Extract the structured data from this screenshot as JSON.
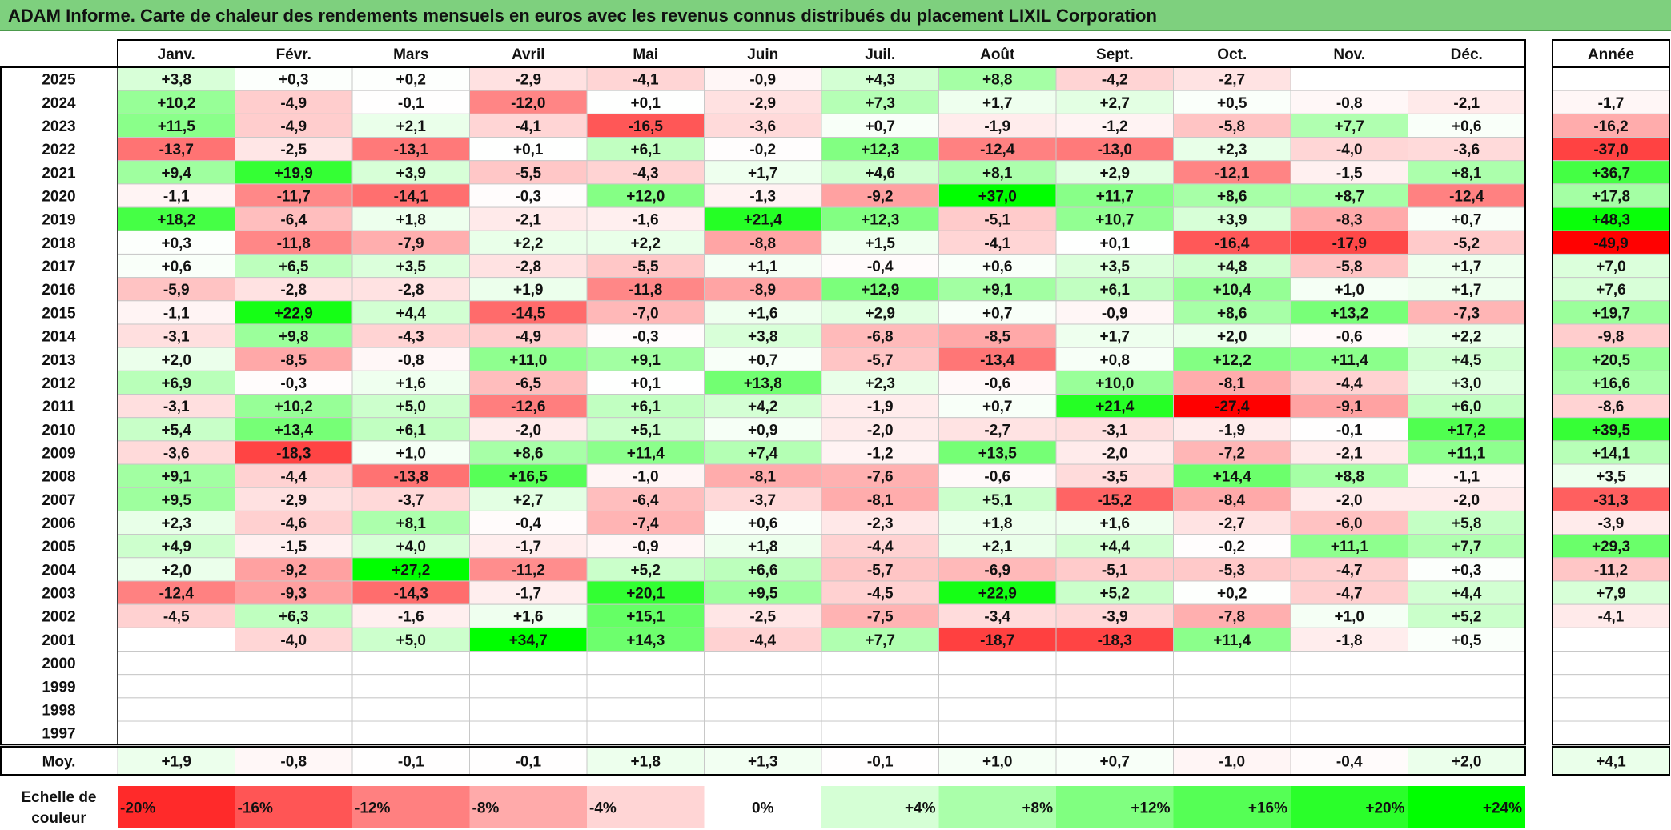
{
  "title": "ADAM Informe. Carte de chaleur des rendements mensuels en euros avec les revenus connus distribués du placement LIXIL Corporation",
  "chart_data": {
    "type": "heatmap",
    "months": [
      "Janv.",
      "Févr.",
      "Mars",
      "Avril",
      "Mai",
      "Juin",
      "Juil.",
      "Août",
      "Sept.",
      "Oct.",
      "Nov.",
      "Déc."
    ],
    "annual_header": "Année",
    "rows": [
      {
        "year": "2025",
        "values": [
          "+3,8",
          "+0,3",
          "+0,2",
          "-2,9",
          "-4,1",
          "-0,9",
          "+4,3",
          "+8,8",
          "-4,2",
          "-2,7",
          "",
          ""
        ],
        "annual": ""
      },
      {
        "year": "2024",
        "values": [
          "+10,2",
          "-4,9",
          "-0,1",
          "-12,0",
          "+0,1",
          "-2,9",
          "+7,3",
          "+1,7",
          "+2,7",
          "+0,5",
          "-0,8",
          "-2,1"
        ],
        "annual": "-1,7"
      },
      {
        "year": "2023",
        "values": [
          "+11,5",
          "-4,9",
          "+2,1",
          "-4,1",
          "-16,5",
          "-3,6",
          "+0,7",
          "-1,9",
          "-1,2",
          "-5,8",
          "+7,7",
          "+0,6"
        ],
        "annual": "-16,2"
      },
      {
        "year": "2022",
        "values": [
          "-13,7",
          "-2,5",
          "-13,1",
          "+0,1",
          "+6,1",
          "-0,2",
          "+12,3",
          "-12,4",
          "-13,0",
          "+2,3",
          "-4,0",
          "-3,6"
        ],
        "annual": "-37,0"
      },
      {
        "year": "2021",
        "values": [
          "+9,4",
          "+19,9",
          "+3,9",
          "-5,5",
          "-4,3",
          "+1,7",
          "+4,6",
          "+8,1",
          "+2,9",
          "-12,1",
          "-1,5",
          "+8,1"
        ],
        "annual": "+36,7"
      },
      {
        "year": "2020",
        "values": [
          "-1,1",
          "-11,7",
          "-14,1",
          "-0,3",
          "+12,0",
          "-1,3",
          "-9,2",
          "+37,0",
          "+11,7",
          "+8,6",
          "+8,7",
          "-12,4"
        ],
        "annual": "+17,8"
      },
      {
        "year": "2019",
        "values": [
          "+18,2",
          "-6,4",
          "+1,8",
          "-2,1",
          "-1,6",
          "+21,4",
          "+12,3",
          "-5,1",
          "+10,7",
          "+3,9",
          "-8,3",
          "+0,7"
        ],
        "annual": "+48,3"
      },
      {
        "year": "2018",
        "values": [
          "+0,3",
          "-11,8",
          "-7,9",
          "+2,2",
          "+2,2",
          "-8,8",
          "+1,5",
          "-4,1",
          "+0,1",
          "-16,4",
          "-17,9",
          "-5,2"
        ],
        "annual": "-49,9"
      },
      {
        "year": "2017",
        "values": [
          "+0,6",
          "+6,5",
          "+3,5",
          "-2,8",
          "-5,5",
          "+1,1",
          "-0,4",
          "+0,6",
          "+3,5",
          "+4,8",
          "-5,8",
          "+1,7"
        ],
        "annual": "+7,0"
      },
      {
        "year": "2016",
        "values": [
          "-5,9",
          "-2,8",
          "-2,8",
          "+1,9",
          "-11,8",
          "-8,9",
          "+12,9",
          "+9,1",
          "+6,1",
          "+10,4",
          "+1,0",
          "+1,7"
        ],
        "annual": "+7,6"
      },
      {
        "year": "2015",
        "values": [
          "-1,1",
          "+22,9",
          "+4,4",
          "-14,5",
          "-7,0",
          "+1,6",
          "+2,9",
          "+0,7",
          "-0,9",
          "+8,6",
          "+13,2",
          "-7,3"
        ],
        "annual": "+19,7"
      },
      {
        "year": "2014",
        "values": [
          "-3,1",
          "+9,8",
          "-4,3",
          "-4,9",
          "-0,3",
          "+3,8",
          "-6,8",
          "-8,5",
          "+1,7",
          "+2,0",
          "-0,6",
          "+2,2"
        ],
        "annual": "-9,8"
      },
      {
        "year": "2013",
        "values": [
          "+2,0",
          "-8,5",
          "-0,8",
          "+11,0",
          "+9,1",
          "+0,7",
          "-5,7",
          "-13,4",
          "+0,8",
          "+12,2",
          "+11,4",
          "+4,5"
        ],
        "annual": "+20,5"
      },
      {
        "year": "2012",
        "values": [
          "+6,9",
          "-0,3",
          "+1,6",
          "-6,5",
          "+0,1",
          "+13,8",
          "+2,3",
          "-0,6",
          "+10,0",
          "-8,1",
          "-4,4",
          "+3,0"
        ],
        "annual": "+16,6"
      },
      {
        "year": "2011",
        "values": [
          "-3,1",
          "+10,2",
          "+5,0",
          "-12,6",
          "+6,1",
          "+4,2",
          "-1,9",
          "+0,7",
          "+21,4",
          "-27,4",
          "-9,1",
          "+6,0"
        ],
        "annual": "-8,6"
      },
      {
        "year": "2010",
        "values": [
          "+5,4",
          "+13,4",
          "+6,1",
          "-2,0",
          "+5,1",
          "+0,9",
          "-2,0",
          "-2,7",
          "-3,1",
          "-1,9",
          "-0,1",
          "+17,2"
        ],
        "annual": "+39,5"
      },
      {
        "year": "2009",
        "values": [
          "-3,6",
          "-18,3",
          "+1,0",
          "+8,6",
          "+11,4",
          "+7,4",
          "-1,2",
          "+13,5",
          "-2,0",
          "-7,2",
          "-2,1",
          "+11,1"
        ],
        "annual": "+14,1"
      },
      {
        "year": "2008",
        "values": [
          "+9,1",
          "-4,4",
          "-13,8",
          "+16,5",
          "-1,0",
          "-8,1",
          "-7,6",
          "-0,6",
          "-3,5",
          "+14,4",
          "+8,8",
          "-1,1"
        ],
        "annual": "+3,5"
      },
      {
        "year": "2007",
        "values": [
          "+9,5",
          "-2,9",
          "-3,7",
          "+2,7",
          "-6,4",
          "-3,7",
          "-8,1",
          "+5,1",
          "-15,2",
          "-8,4",
          "-2,0",
          "-2,0"
        ],
        "annual": "-31,3"
      },
      {
        "year": "2006",
        "values": [
          "+2,3",
          "-4,6",
          "+8,1",
          "-0,4",
          "-7,4",
          "+0,6",
          "-2,3",
          "+1,8",
          "+1,6",
          "-2,7",
          "-6,0",
          "+5,8"
        ],
        "annual": "-3,9"
      },
      {
        "year": "2005",
        "values": [
          "+4,9",
          "-1,5",
          "+4,0",
          "-1,7",
          "-0,9",
          "+1,8",
          "-4,4",
          "+2,1",
          "+4,4",
          "-0,2",
          "+11,1",
          "+7,7"
        ],
        "annual": "+29,3"
      },
      {
        "year": "2004",
        "values": [
          "+2,0",
          "-9,2",
          "+27,2",
          "-11,2",
          "+5,2",
          "+6,6",
          "-5,7",
          "-6,9",
          "-5,1",
          "-5,3",
          "-4,7",
          "+0,3"
        ],
        "annual": "-11,2"
      },
      {
        "year": "2003",
        "values": [
          "-12,4",
          "-9,3",
          "-14,3",
          "-1,7",
          "+20,1",
          "+9,5",
          "-4,5",
          "+22,9",
          "+5,2",
          "+0,2",
          "-4,7",
          "+4,4"
        ],
        "annual": "+7,9"
      },
      {
        "year": "2002",
        "values": [
          "-4,5",
          "+6,3",
          "-1,6",
          "+1,6",
          "+15,1",
          "-2,5",
          "-7,5",
          "-3,4",
          "-3,9",
          "-7,8",
          "+1,0",
          "+5,2"
        ],
        "annual": "-4,1"
      },
      {
        "year": "2001",
        "values": [
          "",
          "-4,0",
          "+5,0",
          "+34,7",
          "+14,3",
          "-4,4",
          "+7,7",
          "-18,7",
          "-18,3",
          "+11,4",
          "-1,8",
          "+0,5"
        ],
        "annual": ""
      },
      {
        "year": "2000",
        "values": [
          "",
          "",
          "",
          "",
          "",
          "",
          "",
          "",
          "",
          "",
          "",
          ""
        ],
        "annual": ""
      },
      {
        "year": "1999",
        "values": [
          "",
          "",
          "",
          "",
          "",
          "",
          "",
          "",
          "",
          "",
          "",
          ""
        ],
        "annual": ""
      },
      {
        "year": "1998",
        "values": [
          "",
          "",
          "",
          "",
          "",
          "",
          "",
          "",
          "",
          "",
          "",
          ""
        ],
        "annual": ""
      },
      {
        "year": "1997",
        "values": [
          "",
          "",
          "",
          "",
          "",
          "",
          "",
          "",
          "",
          "",
          "",
          ""
        ],
        "annual": ""
      }
    ],
    "average": {
      "label": "Moy.",
      "values": [
        "+1,9",
        "-0,8",
        "-0,1",
        "-0,1",
        "+1,8",
        "+1,3",
        "-0,1",
        "+1,0",
        "+0,7",
        "-1,0",
        "-0,4",
        "+2,0"
      ],
      "annual": "+4,1"
    },
    "color_scale": {
      "label_line1": "Echelle de",
      "label_line2": "couleur",
      "stops": [
        "-20%",
        "-16%",
        "-12%",
        "-8%",
        "-4%",
        "0%",
        "+4%",
        "+8%",
        "+12%",
        "+16%",
        "+20%",
        "+24%"
      ],
      "stop_values": [
        -20,
        -16,
        -12,
        -8,
        -4,
        0,
        4,
        8,
        12,
        16,
        20,
        24
      ]
    },
    "colors": {
      "negative_max": "#ff0000",
      "neutral": "#ffffff",
      "positive_max": "#00ff00",
      "title_bg": "#7ed07e"
    }
  }
}
